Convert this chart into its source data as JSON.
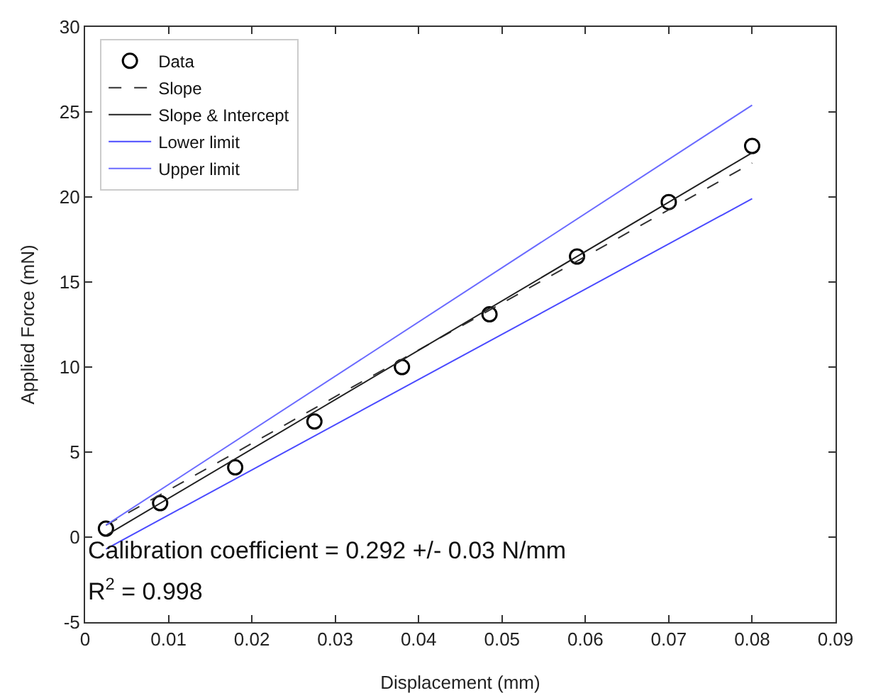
{
  "chart_data": {
    "type": "scatter",
    "xlabel": "Displacement (mm)",
    "ylabel": "Applied Force (mN)",
    "xlim": [
      0,
      0.09
    ],
    "xticks": [
      0,
      0.01,
      0.02,
      0.03,
      0.04,
      0.05,
      0.06,
      0.07,
      0.08,
      0.09
    ],
    "ylim": [
      -5,
      30
    ],
    "yticks": [
      -5,
      0,
      5,
      10,
      15,
      20,
      25,
      30
    ],
    "grid": false,
    "legend": "top left",
    "series": [
      {
        "name": "Data",
        "type": "scatter",
        "marker": "circle",
        "color": "#000000",
        "x": [
          0.0025,
          0.009,
          0.018,
          0.0275,
          0.038,
          0.0485,
          0.059,
          0.07,
          0.08
        ],
        "values": [
          0.5,
          2,
          4.1,
          6.8,
          10,
          13.1,
          16.5,
          19.7,
          23
        ]
      },
      {
        "name": "Slope",
        "type": "line",
        "marker": "none",
        "color": "#303030",
        "line_style": "dashed",
        "x": [
          0.0025,
          0.08
        ],
        "values": [
          0.7,
          22
        ]
      },
      {
        "name": "Slope & Intercept",
        "type": "line",
        "marker": "none",
        "color": "#202020",
        "line_style": "solid",
        "x": [
          0.0025,
          0.08
        ],
        "values": [
          0.1,
          22.6
        ]
      },
      {
        "name": "Lower limit",
        "type": "line",
        "marker": "none",
        "color": "#4a4aff",
        "line_style": "solid",
        "x": [
          0.0025,
          0.08
        ],
        "values": [
          -0.7,
          19.9
        ]
      },
      {
        "name": "Upper limit",
        "type": "line",
        "marker": "none",
        "color": "#6a6aff",
        "line_style": "solid",
        "x": [
          0.0025,
          0.08
        ],
        "values": [
          0.7,
          25.4
        ]
      }
    ],
    "annotations": [
      "Calibration coefficient = 0.292 +/- 0.03 N/mm",
      "R$^{2}$ = 0.998"
    ]
  }
}
